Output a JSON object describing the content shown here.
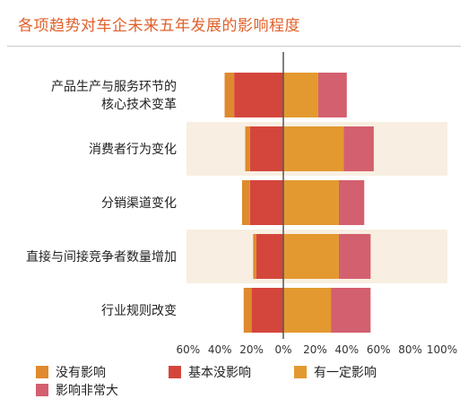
{
  "title": "各项趋势对车企未来五年发展的影响程度",
  "chart_data": {
    "type": "bar",
    "orientation": "horizontal-diverging",
    "categories": [
      [
        "产品生产与服务环节的",
        "核心技术变革"
      ],
      [
        "消费者行为变化"
      ],
      [
        "分销渠道变化"
      ],
      [
        "直接与间接竞争者数量增加"
      ],
      [
        "行业规则改变"
      ]
    ],
    "series": [
      {
        "name": "没有影响",
        "color": "#df8a2e",
        "side": "negative",
        "values": [
          6,
          3,
          5,
          2,
          5
        ]
      },
      {
        "name": "基本没影响",
        "color": "#d4463c",
        "side": "negative",
        "values": [
          31,
          21,
          21,
          17,
          20
        ]
      },
      {
        "name": "有一定影响",
        "color": "#e3992f",
        "side": "positive",
        "values": [
          22,
          38,
          35,
          35,
          30
        ]
      },
      {
        "name": "影响非常大",
        "color": "#d3606f",
        "side": "positive",
        "values": [
          18,
          19,
          16,
          20,
          25
        ]
      }
    ],
    "xlim": [
      -60,
      100
    ],
    "ticks": [
      -60,
      -40,
      -20,
      0,
      20,
      40,
      60,
      80,
      100
    ],
    "tick_labels": [
      "60%",
      "40%",
      "20%",
      "0%",
      "20%",
      "40%",
      "60%",
      "80%",
      "100%"
    ],
    "banded_rows": [
      1,
      3
    ],
    "band_color": "#f8efe2",
    "zero_line_color": "#555555",
    "legend_position": "bottom",
    "grid": false
  }
}
